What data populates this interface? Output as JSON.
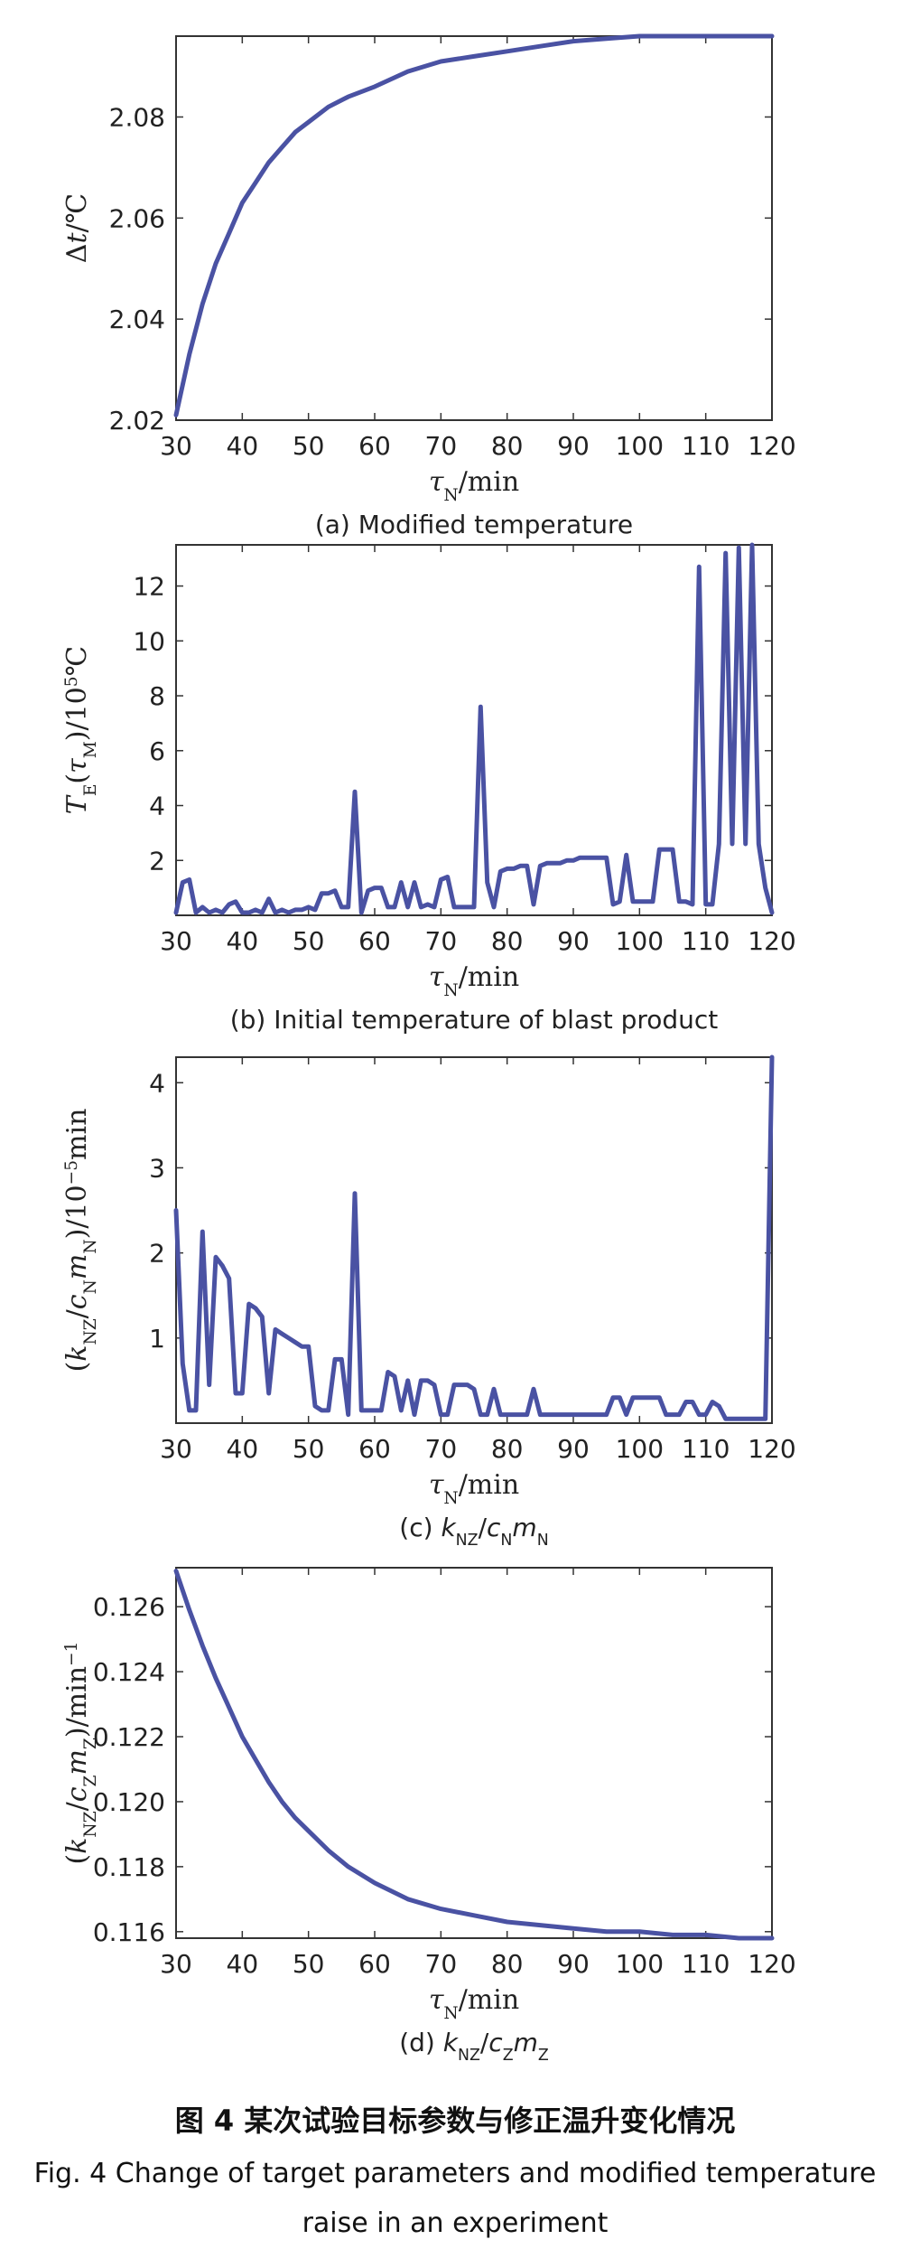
{
  "figure": {
    "title_zh": "图 4   某次试验目标参数与修正温升变化情况",
    "title_en_line1": "Fig. 4    Change of target parameters and modified temperature",
    "title_en_line2": "raise in an experiment"
  },
  "colors": {
    "series": "#4a52a3",
    "frame": "#333333"
  },
  "chart_data": [
    {
      "type": "line",
      "caption": "(a) Modified temperature",
      "xlabel": "τN/min",
      "ylabel": "Δt/℃",
      "xlim": [
        30,
        120
      ],
      "ylim": [
        2.02,
        2.096
      ],
      "xticks": [
        30,
        40,
        50,
        60,
        70,
        80,
        90,
        100,
        110,
        120
      ],
      "yticks": [
        2.02,
        2.04,
        2.06,
        2.08
      ],
      "ytick_labels": [
        "2.02",
        "2.04",
        "2.06",
        "2.08"
      ],
      "x": [
        30,
        32,
        34,
        36,
        38,
        40,
        42,
        44,
        46,
        48,
        50,
        53,
        56,
        60,
        65,
        70,
        75,
        80,
        85,
        90,
        95,
        100,
        105,
        110,
        115,
        120
      ],
      "y": [
        2.021,
        2.033,
        2.043,
        2.051,
        2.057,
        2.063,
        2.067,
        2.071,
        2.074,
        2.077,
        2.079,
        2.082,
        2.084,
        2.086,
        2.089,
        2.091,
        2.092,
        2.093,
        2.094,
        2.095,
        2.0955,
        2.096,
        2.096,
        2.096,
        2.096,
        2.096
      ]
    },
    {
      "type": "line",
      "caption": "(b) Initial temperature of blast product",
      "xlabel": "τN/min",
      "ylabel": "TE(τM)/10⁵℃",
      "xlim": [
        30,
        120
      ],
      "ylim": [
        0,
        13.5
      ],
      "xticks": [
        30,
        40,
        50,
        60,
        70,
        80,
        90,
        100,
        110,
        120
      ],
      "yticks": [
        2,
        4,
        6,
        8,
        10,
        12
      ],
      "ytick_labels": [
        "2",
        "4",
        "6",
        "8",
        "10",
        "12"
      ],
      "x": [
        30,
        31,
        32,
        33,
        34,
        35,
        36,
        37,
        38,
        39,
        40,
        41,
        42,
        43,
        44,
        45,
        46,
        47,
        48,
        49,
        50,
        51,
        52,
        53,
        54,
        55,
        56,
        57,
        58,
        59,
        60,
        61,
        62,
        63,
        64,
        65,
        66,
        67,
        68,
        69,
        70,
        71,
        72,
        73,
        74,
        75,
        76,
        77,
        78,
        79,
        80,
        81,
        82,
        83,
        84,
        85,
        86,
        87,
        88,
        89,
        90,
        91,
        92,
        93,
        94,
        95,
        96,
        97,
        98,
        99,
        100,
        101,
        102,
        103,
        104,
        105,
        106,
        107,
        108,
        109,
        110,
        111,
        112,
        113,
        114,
        115,
        116,
        117,
        118,
        119,
        120
      ],
      "y": [
        0.1,
        1.2,
        1.3,
        0.1,
        0.3,
        0.1,
        0.2,
        0.1,
        0.4,
        0.5,
        0.1,
        0.1,
        0.2,
        0.1,
        0.6,
        0.1,
        0.2,
        0.1,
        0.2,
        0.2,
        0.3,
        0.2,
        0.8,
        0.8,
        0.9,
        0.3,
        0.3,
        4.5,
        0.1,
        0.9,
        1.0,
        1.0,
        0.3,
        0.3,
        1.2,
        0.3,
        1.2,
        0.3,
        0.4,
        0.3,
        1.3,
        1.4,
        0.3,
        0.3,
        0.3,
        0.3,
        7.6,
        1.2,
        0.3,
        1.6,
        1.7,
        1.7,
        1.8,
        1.8,
        0.4,
        1.8,
        1.9,
        1.9,
        1.9,
        2.0,
        2.0,
        2.1,
        2.1,
        2.1,
        2.1,
        2.1,
        0.4,
        0.5,
        2.2,
        0.5,
        0.5,
        0.5,
        0.5,
        2.4,
        2.4,
        2.4,
        0.5,
        0.5,
        0.4,
        12.7,
        0.4,
        0.4,
        2.6,
        13.2,
        2.6,
        13.4,
        2.6,
        13.5,
        2.6,
        1.0,
        0.1
      ]
    },
    {
      "type": "line",
      "caption": "(c) kNZ/cNmN",
      "xlabel": "τN/min",
      "ylabel": "(kNZ/cNmN)/10⁻⁵min",
      "xlim": [
        30,
        120
      ],
      "ylim": [
        0,
        4.3
      ],
      "xticks": [
        30,
        40,
        50,
        60,
        70,
        80,
        90,
        100,
        110,
        120
      ],
      "yticks": [
        1,
        2,
        3,
        4
      ],
      "ytick_labels": [
        "1",
        "2",
        "3",
        "4"
      ],
      "x": [
        30,
        31,
        32,
        33,
        34,
        35,
        36,
        37,
        38,
        39,
        40,
        41,
        42,
        43,
        44,
        45,
        46,
        47,
        48,
        49,
        50,
        51,
        52,
        53,
        54,
        55,
        56,
        57,
        58,
        59,
        60,
        61,
        62,
        63,
        64,
        65,
        66,
        67,
        68,
        69,
        70,
        71,
        72,
        73,
        74,
        75,
        76,
        77,
        78,
        79,
        80,
        81,
        82,
        83,
        84,
        85,
        86,
        87,
        88,
        89,
        90,
        91,
        92,
        93,
        94,
        95,
        96,
        97,
        98,
        99,
        100,
        101,
        102,
        103,
        104,
        105,
        106,
        107,
        108,
        109,
        110,
        111,
        112,
        113,
        114,
        115,
        116,
        117,
        118,
        119,
        120
      ],
      "y": [
        2.5,
        0.7,
        0.15,
        0.15,
        2.25,
        0.45,
        1.95,
        1.85,
        1.7,
        0.35,
        0.35,
        1.4,
        1.35,
        1.25,
        0.35,
        1.1,
        1.05,
        1.0,
        0.95,
        0.9,
        0.9,
        0.2,
        0.15,
        0.15,
        0.75,
        0.75,
        0.1,
        2.7,
        0.15,
        0.15,
        0.15,
        0.15,
        0.6,
        0.55,
        0.15,
        0.5,
        0.1,
        0.5,
        0.5,
        0.45,
        0.1,
        0.1,
        0.45,
        0.45,
        0.45,
        0.4,
        0.1,
        0.1,
        0.4,
        0.1,
        0.1,
        0.1,
        0.1,
        0.1,
        0.4,
        0.1,
        0.1,
        0.1,
        0.1,
        0.1,
        0.1,
        0.1,
        0.1,
        0.1,
        0.1,
        0.1,
        0.3,
        0.3,
        0.1,
        0.3,
        0.3,
        0.3,
        0.3,
        0.3,
        0.1,
        0.1,
        0.1,
        0.25,
        0.25,
        0.1,
        0.1,
        0.25,
        0.2,
        0.05,
        0.05,
        0.05,
        0.05,
        0.05,
        0.05,
        0.05,
        4.3
      ]
    },
    {
      "type": "line",
      "caption": "(d) kNZ/cZmZ",
      "xlabel": "τN/min",
      "ylabel": "(kNZ/cZmZ)/min⁻¹",
      "xlim": [
        30,
        120
      ],
      "ylim": [
        0.1158,
        0.1272
      ],
      "xticks": [
        30,
        40,
        50,
        60,
        70,
        80,
        90,
        100,
        110,
        120
      ],
      "yticks": [
        0.116,
        0.118,
        0.12,
        0.122,
        0.124,
        0.126
      ],
      "ytick_labels": [
        "0.116",
        "0.118",
        "0.120",
        "0.122",
        "0.124",
        "0.126"
      ],
      "x": [
        30,
        32,
        34,
        36,
        38,
        40,
        42,
        44,
        46,
        48,
        50,
        53,
        56,
        60,
        65,
        70,
        75,
        80,
        85,
        90,
        95,
        100,
        105,
        110,
        115,
        120
      ],
      "y": [
        0.1271,
        0.1259,
        0.1248,
        0.1238,
        0.1229,
        0.122,
        0.1213,
        0.1206,
        0.12,
        0.1195,
        0.1191,
        0.1185,
        0.118,
        0.1175,
        0.117,
        0.1167,
        0.1165,
        0.1163,
        0.1162,
        0.1161,
        0.116,
        0.116,
        0.1159,
        0.1159,
        0.1158,
        0.1158
      ]
    }
  ]
}
